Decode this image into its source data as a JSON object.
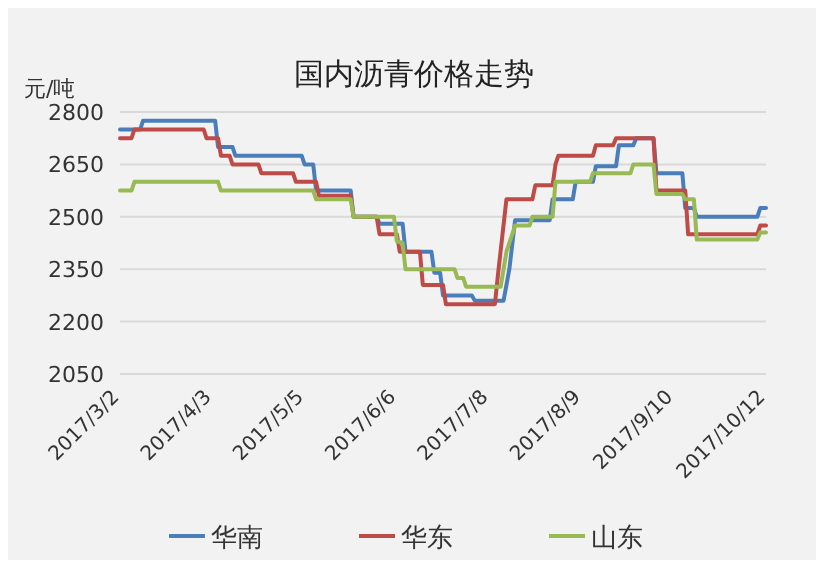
{
  "chart_data": {
    "type": "line",
    "title": "国内沥青价格走势",
    "ylabel": "元/吨",
    "xlim": [
      "2017-03-02",
      "2017-10-12"
    ],
    "xticks": [
      {
        "value": "2017-03-02",
        "label": "2017/3/2"
      },
      {
        "value": "2017-04-03",
        "label": "2017/4/3"
      },
      {
        "value": "2017-05-05",
        "label": "2017/5/5"
      },
      {
        "value": "2017-06-06",
        "label": "2017/6/6"
      },
      {
        "value": "2017-07-08",
        "label": "2017/7/8"
      },
      {
        "value": "2017-08-09",
        "label": "2017/8/9"
      },
      {
        "value": "2017-09-10",
        "label": "2017/9/10"
      },
      {
        "value": "2017-10-12",
        "label": "2017/10/12"
      }
    ],
    "ylim": [
      2050,
      2800
    ],
    "yticks": [
      2050,
      2200,
      2350,
      2500,
      2650,
      2800
    ],
    "grid": "y",
    "legend": "bottom",
    "marker": "none",
    "line_style": "solid",
    "series": [
      {
        "name": "华南",
        "color": "#4a7ebb",
        "x": [
          "2017-03-02",
          "2017-03-09",
          "2017-03-10",
          "2017-04-04",
          "2017-04-05",
          "2017-04-10",
          "2017-04-11",
          "2017-05-04",
          "2017-05-05",
          "2017-05-08",
          "2017-05-09",
          "2017-05-21",
          "2017-05-22",
          "2017-05-30",
          "2017-05-31",
          "2017-06-08",
          "2017-06-09",
          "2017-06-18",
          "2017-06-19",
          "2017-06-21",
          "2017-06-22",
          "2017-07-02",
          "2017-07-03",
          "2017-07-13",
          "2017-07-15",
          "2017-07-17",
          "2017-07-29",
          "2017-07-30",
          "2017-08-06",
          "2017-08-07",
          "2017-08-13",
          "2017-08-14",
          "2017-08-21",
          "2017-08-22",
          "2017-08-27",
          "2017-08-28",
          "2017-09-03",
          "2017-09-04",
          "2017-09-13",
          "2017-09-14",
          "2017-09-17",
          "2017-09-18",
          "2017-10-09",
          "2017-10-10",
          "2017-10-12"
        ],
        "values": [
          2750,
          2750,
          2775,
          2775,
          2700,
          2700,
          2675,
          2675,
          2650,
          2650,
          2575,
          2575,
          2500,
          2500,
          2480,
          2480,
          2400,
          2400,
          2340,
          2340,
          2275,
          2275,
          2260,
          2260,
          2350,
          2490,
          2490,
          2550,
          2550,
          2600,
          2600,
          2645,
          2645,
          2705,
          2705,
          2725,
          2725,
          2625,
          2625,
          2525,
          2525,
          2500,
          2500,
          2525,
          2525
        ]
      },
      {
        "name": "华东",
        "color": "#be4b48",
        "x": [
          "2017-03-02",
          "2017-03-06",
          "2017-03-07",
          "2017-03-31",
          "2017-04-01",
          "2017-04-05",
          "2017-04-06",
          "2017-04-09",
          "2017-04-10",
          "2017-04-19",
          "2017-04-20",
          "2017-05-01",
          "2017-05-02",
          "2017-05-09",
          "2017-05-10",
          "2017-05-21",
          "2017-05-22",
          "2017-05-30",
          "2017-05-31",
          "2017-06-06",
          "2017-06-07",
          "2017-06-14",
          "2017-06-15",
          "2017-06-22",
          "2017-06-23",
          "2017-07-10",
          "2017-07-11",
          "2017-07-14",
          "2017-07-23",
          "2017-07-24",
          "2017-07-30",
          "2017-07-31",
          "2017-08-01",
          "2017-08-13",
          "2017-08-14",
          "2017-08-20",
          "2017-08-21",
          "2017-09-03",
          "2017-09-04",
          "2017-09-14",
          "2017-09-15",
          "2017-10-09",
          "2017-10-10",
          "2017-10-12"
        ],
        "values": [
          2725,
          2725,
          2750,
          2750,
          2725,
          2725,
          2675,
          2675,
          2650,
          2650,
          2625,
          2625,
          2600,
          2600,
          2560,
          2560,
          2500,
          2500,
          2450,
          2450,
          2400,
          2400,
          2305,
          2305,
          2250,
          2250,
          2330,
          2550,
          2550,
          2590,
          2590,
          2650,
          2675,
          2675,
          2705,
          2705,
          2725,
          2725,
          2575,
          2575,
          2450,
          2450,
          2475,
          2475
        ]
      },
      {
        "name": "山东",
        "color": "#98b954",
        "x": [
          "2017-03-02",
          "2017-03-06",
          "2017-03-07",
          "2017-04-05",
          "2017-04-06",
          "2017-05-08",
          "2017-05-09",
          "2017-05-21",
          "2017-05-22",
          "2017-06-05",
          "2017-06-06",
          "2017-06-08",
          "2017-06-09",
          "2017-06-26",
          "2017-06-27",
          "2017-06-29",
          "2017-06-30",
          "2017-07-12",
          "2017-07-14",
          "2017-07-17",
          "2017-07-22",
          "2017-07-23",
          "2017-07-30",
          "2017-07-31",
          "2017-08-12",
          "2017-08-13",
          "2017-08-26",
          "2017-08-27",
          "2017-09-03",
          "2017-09-04",
          "2017-09-13",
          "2017-09-14",
          "2017-09-17",
          "2017-09-18",
          "2017-10-09",
          "2017-10-10",
          "2017-10-12"
        ],
        "values": [
          2575,
          2575,
          2600,
          2600,
          2575,
          2575,
          2550,
          2550,
          2500,
          2500,
          2430,
          2425,
          2350,
          2350,
          2325,
          2325,
          2300,
          2300,
          2400,
          2475,
          2475,
          2500,
          2500,
          2600,
          2600,
          2625,
          2625,
          2650,
          2650,
          2565,
          2565,
          2550,
          2550,
          2435,
          2435,
          2455,
          2455
        ]
      }
    ]
  }
}
